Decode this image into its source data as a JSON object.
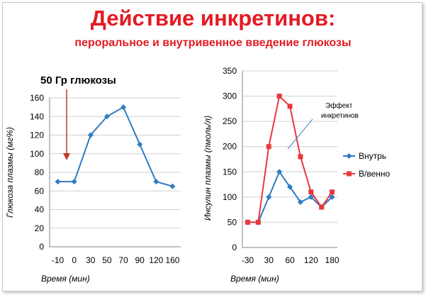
{
  "title": "Действие инкретинов:",
  "subtitle": "пероральное и внутривенное введение глюкозы",
  "colors": {
    "title": "#e31b23",
    "oral": "#2f7cc2",
    "iv": "#e8383d",
    "arrow": "#c0392b",
    "callout": "#4a86c5"
  },
  "chart_data": [
    {
      "type": "line",
      "categories": [
        "-10",
        "0",
        "30",
        "50",
        "70",
        "90",
        "120",
        "160"
      ],
      "series": [
        {
          "values": [
            70,
            70,
            120,
            140,
            150,
            110,
            70,
            65
          ]
        }
      ],
      "xlabel": "Время (мин)",
      "ylabel": "Глюкоза плазмы (мг%)",
      "ylim": [
        0,
        160
      ],
      "yticks": [
        0,
        20,
        40,
        60,
        80,
        100,
        120,
        140,
        160
      ],
      "annotation": "50 Гр глюкозы",
      "grid": true
    },
    {
      "type": "line",
      "categories": [
        "-30",
        "",
        "30",
        "",
        "60",
        "",
        "120",
        "",
        "180"
      ],
      "series": [
        {
          "name": "Внутрь",
          "values": [
            50,
            50,
            100,
            150,
            120,
            90,
            100,
            80,
            100
          ]
        },
        {
          "name": "В/венно",
          "values": [
            50,
            50,
            200,
            300,
            280,
            180,
            110,
            80,
            110
          ]
        }
      ],
      "xlabel": "Время (мин)",
      "ylabel": "Инсулин плазмы (пмоль/л)",
      "ylim": [
        0,
        350
      ],
      "yticks": [
        0,
        50,
        100,
        150,
        200,
        250,
        300,
        350
      ],
      "annotation": "Эффект инкретинов",
      "legend": "right",
      "grid": true
    }
  ]
}
